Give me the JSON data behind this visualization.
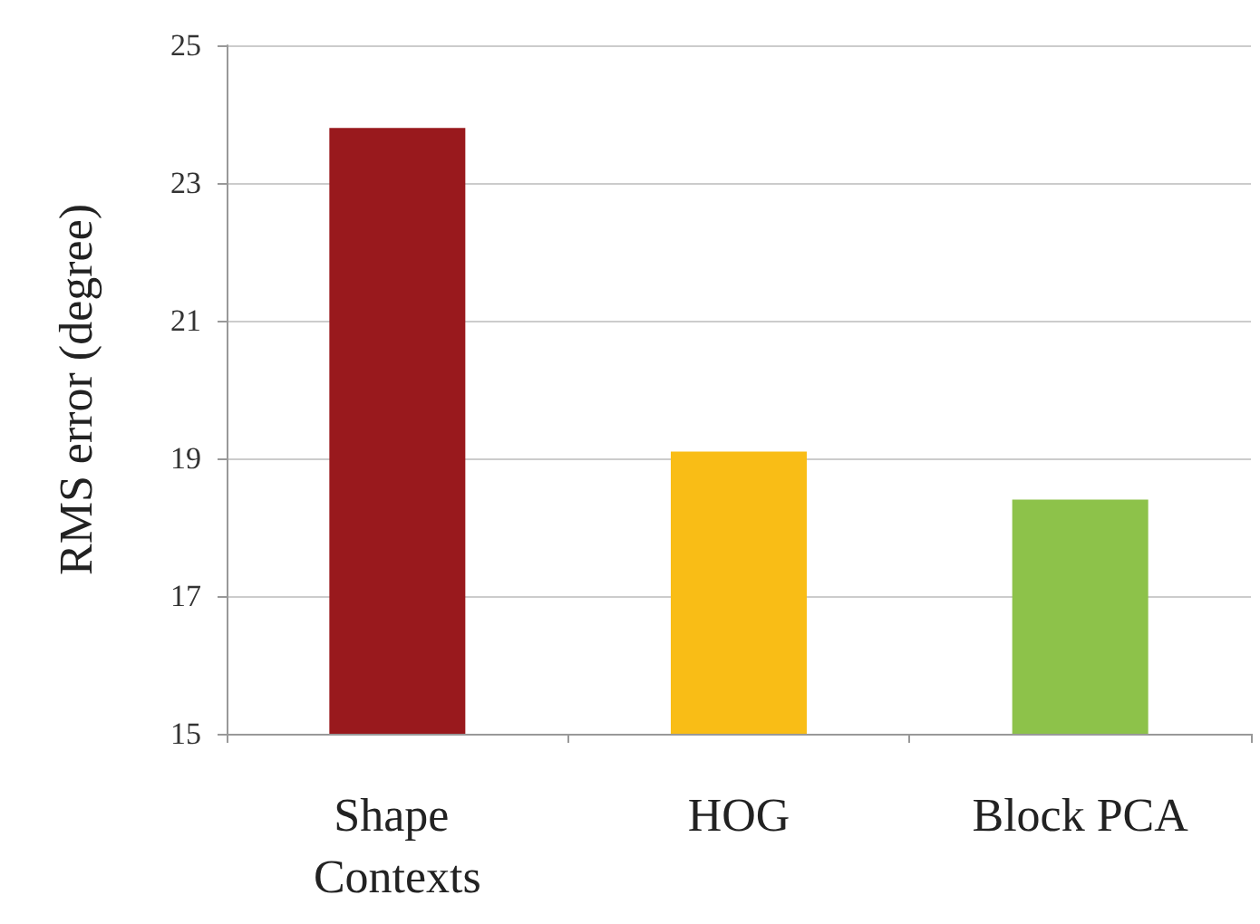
{
  "chart_data": {
    "type": "bar",
    "ylabel": "RMS error (degree)",
    "categories": [
      "Shape Contexts",
      "HOG",
      "Block PCA"
    ],
    "values": [
      23.8,
      19.1,
      18.4
    ],
    "colors": [
      "#99191d",
      "#f9bd16",
      "#8dc24a"
    ],
    "ylim": [
      15,
      25
    ],
    "yticks": [
      15,
      17,
      19,
      21,
      23,
      25
    ],
    "grid": "y"
  }
}
